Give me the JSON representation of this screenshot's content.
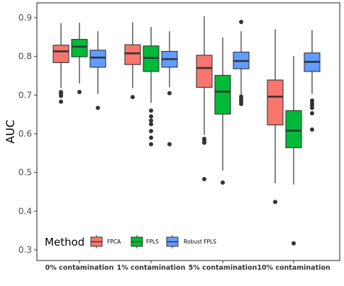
{
  "chart_data": {
    "type": "boxplot",
    "xlabel": "",
    "ylabel": "AUC",
    "ylim": [
      0.3,
      0.93
    ],
    "yticks": [
      0.3,
      0.4,
      0.5,
      0.6,
      0.7,
      0.8,
      0.9
    ],
    "categories": [
      "0% contamination",
      "1% contamination",
      "5% contamination",
      "10% contamination"
    ],
    "legend": {
      "title": "Method",
      "placement": "bottom-left"
    },
    "grid": false,
    "series": [
      {
        "name": "FPCA",
        "color": "#F8766D",
        "boxes": [
          {
            "whisker_low": 0.718,
            "q1": 0.784,
            "median": 0.813,
            "q3": 0.829,
            "whisker_high": 0.886,
            "outliers": [
              0.708,
              0.704,
              0.698,
              0.683
            ]
          },
          {
            "whisker_low": 0.718,
            "q1": 0.779,
            "median": 0.808,
            "q3": 0.83,
            "whisker_high": 0.888,
            "outliers": [
              0.695
            ]
          },
          {
            "whisker_low": 0.597,
            "q1": 0.72,
            "median": 0.77,
            "q3": 0.803,
            "whisker_high": 0.904,
            "outliers": [
              0.587,
              0.582,
              0.577,
              0.483
            ]
          },
          {
            "whisker_low": 0.472,
            "q1": 0.623,
            "median": 0.696,
            "q3": 0.739,
            "whisker_high": 0.87,
            "outliers": [
              0.424
            ]
          }
        ]
      },
      {
        "name": "FPLS",
        "color": "#00BA38",
        "boxes": [
          {
            "whisker_low": 0.73,
            "q1": 0.799,
            "median": 0.825,
            "q3": 0.844,
            "whisker_high": 0.887,
            "outliers": [
              0.708
            ]
          },
          {
            "whisker_low": 0.68,
            "q1": 0.761,
            "median": 0.796,
            "q3": 0.827,
            "whisker_high": 0.876,
            "outliers": [
              0.66,
              0.645,
              0.634,
              0.625,
              0.607,
              0.59,
              0.573
            ]
          },
          {
            "whisker_low": 0.505,
            "q1": 0.651,
            "median": 0.709,
            "q3": 0.751,
            "whisker_high": 0.849,
            "outliers": [
              0.474
            ]
          },
          {
            "whisker_low": 0.469,
            "q1": 0.564,
            "median": 0.608,
            "q3": 0.66,
            "whisker_high": 0.801,
            "outliers": [
              0.317
            ]
          }
        ]
      },
      {
        "name": "Robust FPLS",
        "color": "#619CFF",
        "boxes": [
          {
            "whisker_low": 0.703,
            "q1": 0.772,
            "median": 0.797,
            "q3": 0.816,
            "whisker_high": 0.865,
            "outliers": [
              0.667
            ]
          },
          {
            "whisker_low": 0.72,
            "q1": 0.772,
            "median": 0.793,
            "q3": 0.813,
            "whisker_high": 0.865,
            "outliers": [
              0.705,
              0.573
            ]
          },
          {
            "whisker_low": 0.7,
            "q1": 0.768,
            "median": 0.788,
            "q3": 0.811,
            "whisker_high": 0.865,
            "outliers": [
              0.696,
              0.689,
              0.683,
              0.677,
              0.889
            ]
          },
          {
            "whisker_low": 0.703,
            "q1": 0.761,
            "median": 0.786,
            "q3": 0.809,
            "whisker_high": 0.868,
            "outliers": [
              0.686,
              0.68,
              0.674,
              0.667,
              0.653,
              0.611
            ]
          }
        ]
      }
    ]
  }
}
